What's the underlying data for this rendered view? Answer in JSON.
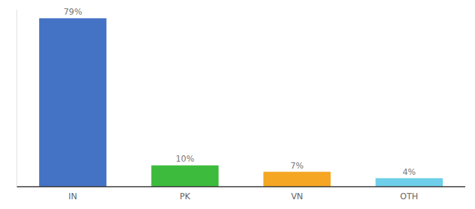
{
  "chart_data": {
    "type": "bar",
    "categories": [
      "IN",
      "PK",
      "VN",
      "OTH"
    ],
    "values": [
      79,
      10,
      7,
      4
    ],
    "value_labels": [
      "79%",
      "10%",
      "7%",
      "4%"
    ],
    "colors": [
      "#4472c4",
      "#3dbb3d",
      "#f5a623",
      "#6fcfea"
    ],
    "ylim": [
      0,
      83
    ],
    "data_labels": true,
    "tick_labels": "x"
  }
}
